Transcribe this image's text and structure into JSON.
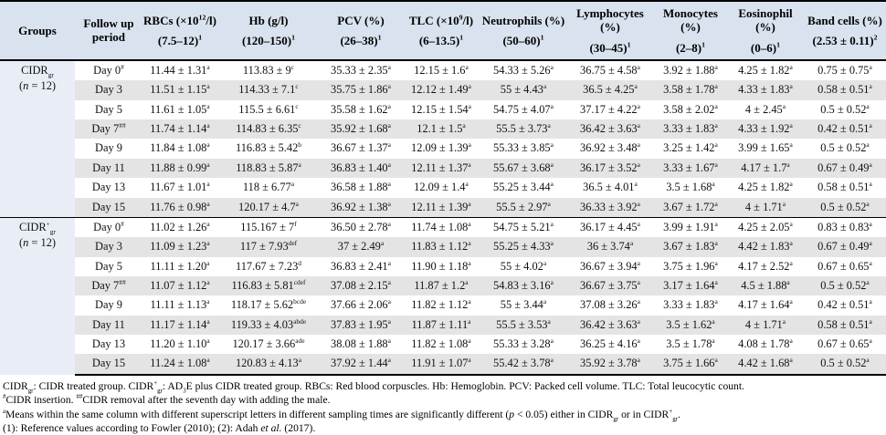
{
  "table": {
    "columns": [
      {
        "name": "Groups",
        "ref": ""
      },
      {
        "name": "Follow up period",
        "ref": ""
      },
      {
        "name": "RBCs (×10^12^/l)",
        "ref": "(7.5–12)^1^"
      },
      {
        "name": "Hb (g/l)",
        "ref": "(120–150)^1^"
      },
      {
        "name": "PCV (%)",
        "ref": "(26–38)^1^"
      },
      {
        "name": "TLC (×10^9^/l)",
        "ref": "(6–13.5)^1^"
      },
      {
        "name": "Neutrophils (%)",
        "ref": "(50–60)^1^"
      },
      {
        "name": "Lymphocytes (%)",
        "ref": "(30–45)^1^"
      },
      {
        "name": "Monocytes (%)",
        "ref": "(2–8)^1^"
      },
      {
        "name": "Eosinophil (%)",
        "ref": "(0–6)^1^"
      },
      {
        "name": "Band cells (%)",
        "ref": "(2.53 ± 0.11)^2^"
      }
    ],
    "groups": [
      {
        "label": "CIDR~gr~",
        "n": "(*n* = 12)",
        "rows": [
          {
            "period": "Day 0^#^",
            "values": [
              "11.44 ± 1.31^a^",
              "113.83 ± 9^c^",
              "35.33 ± 2.35^a^",
              "12.15 ± 1.6^a^",
              "54.33 ± 5.26^a^",
              "36.75 ± 4.58^a^",
              "3.92 ± 1.88^a^",
              "4.25 ± 1.82^a^",
              "0.75 ± 0.75^a^"
            ]
          },
          {
            "period": "Day 3",
            "values": [
              "11.51 ± 1.15^a^",
              "114.33 ± 7.1^c^",
              "35.75 ± 1.86^a^",
              "12.12 ± 1.49^a^",
              "55 ± 4.43^a^",
              "36.5 ± 4.25^a^",
              "3.58 ± 1.78^a^",
              "4.33 ± 1.83^a^",
              "0.58 ± 0.51^a^"
            ]
          },
          {
            "period": "Day 5",
            "values": [
              "11.61 ± 1.05^a^",
              "115.5 ± 6.61^c^",
              "35.58 ± 1.62^a^",
              "12.15 ± 1.54^a^",
              "54.75 ± 4.07^a^",
              "37.17 ± 4.22^a^",
              "3.58 ± 2.02^a^",
              "4 ± 2.45^a^",
              "0.5 ± 0.52^a^"
            ]
          },
          {
            "period": "Day 7^##^",
            "values": [
              "11.74 ± 1.14^a^",
              "114.83 ± 6.35^c^",
              "35.92 ± 1.68^a^",
              "12.1 ± 1.5^a^",
              "55.5 ± 3.73^a^",
              "36.42 ± 3.63^a^",
              "3.33 ± 1.83^a^",
              "4.33 ± 1.92^a^",
              "0.42 ± 0.51^a^"
            ]
          },
          {
            "period": "Day 9",
            "values": [
              "11.84 ± 1.08^a^",
              "116.83 ± 5.42^b^",
              "36.67 ± 1.37^a^",
              "12.09 ± 1.39^a^",
              "55.33 ± 3.85^a^",
              "36.92 ± 3.48^a^",
              "3.25 ± 1.42^a^",
              "3.99 ± 1.65^a^",
              "0.5 ± 0.52^a^"
            ]
          },
          {
            "period": "Day 11",
            "values": [
              "11.88 ± 0.99^a^",
              "118.83 ± 5.87^a^",
              "36.83 ± 1.40^a^",
              "12.11 ± 1.37^a^",
              "55.67 ± 3.68^a^",
              "36.17 ± 3.52^a^",
              "3.33 ± 1.67^a^",
              "4.17 ± 1.7^a^",
              "0.67 ± 0.49^a^"
            ]
          },
          {
            "period": "Day 13",
            "values": [
              "11.67 ± 1.01^a^",
              "118 ± 6.77^a^",
              "36.58 ± 1.88^a^",
              "12.09 ± 1.4^a^",
              "55.25 ± 3.44^a^",
              "36.5 ± 4.01^a^",
              "3.5 ± 1.68^a^",
              "4.25 ± 1.82^a^",
              "0.58 ± 0.51^a^"
            ]
          },
          {
            "period": "Day 15",
            "values": [
              "11.76 ± 0.98^a^",
              "120.17 ± 4.7^a^",
              "36.92 ± 1.38^a^",
              "12.11 ± 1.39^a^",
              "55.5 ± 2.97^a^",
              "36.33 ± 3.92^a^",
              "3.67 ± 1.72^a^",
              "4 ± 1.71^a^",
              "0.5 ± 0.52^a^"
            ]
          }
        ]
      },
      {
        "label": "CIDR^+^~gr~",
        "n": "(*n* = 12)",
        "rows": [
          {
            "period": "Day 0^#^",
            "values": [
              "11.02 ± 1.26^a^",
              "115.167 ± 7^f^",
              "36.50 ± 2.78^a^",
              "11.74 ± 1.08^a^",
              "54.75 ± 5.21^a^",
              "36.17 ± 4.45^a^",
              "3.99 ± 1.91^a^",
              "4.25 ± 2.05^a^",
              "0.83 ± 0.83^a^"
            ]
          },
          {
            "period": "Day 3",
            "values": [
              "11.09 ± 1.23^a^",
              "117 ± 7.93^def^",
              "37 ± 2.49^a^",
              "11.83 ± 1.12^a^",
              "55.25 ± 4.33^a^",
              "36 ± 3.74^a^",
              "3.67 ± 1.83^a^",
              "4.42 ± 1.83^a^",
              "0.67 ± 0.49^a^"
            ]
          },
          {
            "period": "Day 5",
            "values": [
              "11.11 ± 1.20^a^",
              "117.67 ± 7.23^d^",
              "36.83 ± 2.41^a^",
              "11.90 ± 1.18^a^",
              "55 ± 4.02^a^",
              "36.67 ± 3.94^a^",
              "3.75 ± 1.96^a^",
              "4.17 ± 2.52^a^",
              "0.67 ± 0.65^a^"
            ]
          },
          {
            "period": "Day 7^##^",
            "values": [
              "11.07 ± 1.12^a^",
              "116.83 ± 5.81^cdef^",
              "37.08 ± 2.15^a^",
              "11.87 ± 1.2^a^",
              "54.83 ± 3.16^a^",
              "36.67 ± 3.75^a^",
              "3.17 ± 1.64^a^",
              "4.5 ± 1.88^a^",
              "0.5 ± 0.52^a^"
            ]
          },
          {
            "period": "Day 9",
            "values": [
              "11.11 ± 1.13^a^",
              "118.17 ± 5.62^bcde^",
              "37.66 ± 2.06^a^",
              "11.82 ± 1.12^a^",
              "55 ± 3.44^a^",
              "37.08 ± 3.26^a^",
              "3.33 ± 1.83^a^",
              "4.17 ± 1.64^a^",
              "0.42 ± 0.51^a^"
            ]
          },
          {
            "period": "Day 11",
            "values": [
              "11.17 ± 1.14^a^",
              "119.33 ± 4.03^abde^",
              "37.83 ± 1.95^a^",
              "11.87 ± 1.11^a^",
              "55.5 ± 3.53^a^",
              "36.42 ± 3.63^a^",
              "3.5 ± 1.62^a^",
              "4 ± 1.71^a^",
              "0.58 ± 0.51^a^"
            ]
          },
          {
            "period": "Day 13",
            "values": [
              "11.20 ± 1.10^a^",
              "120.17 ± 3.66^ade^",
              "38.08 ± 1.88^a^",
              "11.82 ± 1.08^a^",
              "55.33 ± 3.28^a^",
              "36.25 ± 4.16^a^",
              "3.5 ± 1.78^a^",
              "4.08 ± 1.78^a^",
              "0.67 ± 0.65^a^"
            ]
          },
          {
            "period": "Day 15",
            "values": [
              "11.24 ± 1.08^a^",
              "120.83 ± 4.13^a^",
              "37.92 ± 1.44^a^",
              "11.91 ± 1.07^a^",
              "55.42 ± 3.78^a^",
              "35.92 ± 3.78^a^",
              "3.75 ± 1.66^a^",
              "4.42 ± 1.68^a^",
              "0.5 ± 0.52^a^"
            ]
          }
        ]
      }
    ]
  },
  "footnotes": [
    "CIDR~gr~: CIDR treated group. CIDR^+^~gr~: AD~3~E plus CIDR treated group. RBCs: Red blood corpuscles. Hb: Hemoglobin. PCV: Packed cell volume. TLC: Total leucocytic count.",
    "^#^CIDR insertion. ^##^CIDR removal after the seventh day with adding the male.",
    "^a^Means within the same column with different superscript letters in different sampling times are significantly different (*p* < 0.05) either in CIDR~gr~ or in CIDR^+^~gr~.",
    "(1): Reference values according to Fowler (2010); (2): Adah *et al.* (2017)."
  ],
  "colors": {
    "header_bg": "#d9e3ef",
    "group_cell_bg": "#e9eef6",
    "stripe_bg": "#e4e4e4",
    "border": "#000000"
  }
}
